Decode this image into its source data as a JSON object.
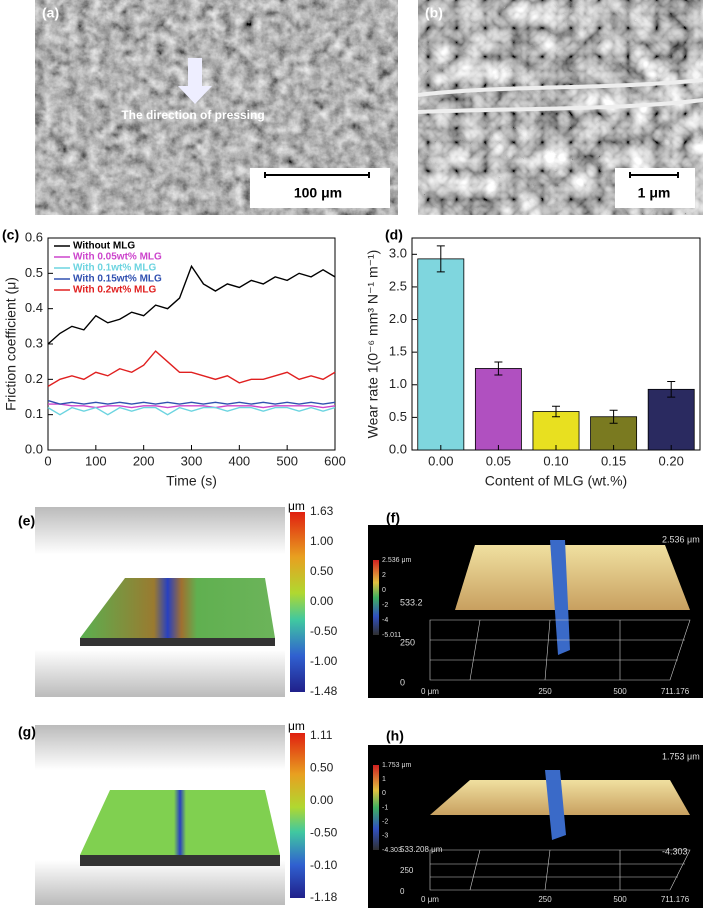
{
  "panels": {
    "a": {
      "label": "(a)",
      "annotation": "The direction of pressing",
      "scale_bar": "100 μm"
    },
    "b": {
      "label": "(b)",
      "scale_bar": "1 μm"
    },
    "e": {
      "label": "(e)",
      "unit": "μm",
      "colorbar": [
        "1.63",
        "1.00",
        "0.50",
        "0.00",
        "-0.50",
        "-1.00",
        "-1.48"
      ]
    },
    "f": {
      "label": "(f)",
      "max_label": "2.536 μm",
      "colorbar": [
        "2.536 μm",
        "2",
        "0",
        "-2",
        "-4",
        "-5.011"
      ],
      "y_labels": [
        "533.2",
        "250",
        "0"
      ],
      "x_labels": [
        "0 μm",
        "250",
        "500",
        "711.176"
      ]
    },
    "g": {
      "label": "(g)",
      "unit": "μm",
      "colorbar": [
        "1.11",
        "0.50",
        "0.00",
        "-0.50",
        "-0.10",
        "-1.18"
      ]
    },
    "h": {
      "label": "(h)",
      "max_label": "1.753 μm",
      "colorbar": [
        "1.753 μm",
        "1",
        "0",
        "-1",
        "-2",
        "-3",
        "-4.303"
      ],
      "y_labels": [
        "533.208 μm",
        "250",
        "0"
      ],
      "min_label": "-4.303",
      "x_labels": [
        "0 μm",
        "250",
        "500",
        "711.176"
      ]
    }
  },
  "chart_data": [
    {
      "type": "line",
      "panel_label": "(c)",
      "xlabel": "Time (s)",
      "ylabel": "Friction coefficient (μ)",
      "x": [
        0,
        25,
        50,
        75,
        100,
        125,
        150,
        175,
        200,
        225,
        250,
        275,
        300,
        325,
        350,
        375,
        400,
        425,
        450,
        475,
        500,
        525,
        550,
        575,
        600
      ],
      "xlim": [
        0,
        600
      ],
      "xticks": [
        0,
        100,
        200,
        300,
        400,
        500,
        600
      ],
      "ylim": [
        0,
        0.6
      ],
      "yticks": [
        {
          "value": 0,
          "label": "0.0"
        },
        0.1,
        0.2,
        0.3,
        0.4,
        0.5,
        0.6
      ],
      "series": [
        {
          "name": "Without MLG",
          "color": "#000000",
          "values": [
            0.3,
            0.33,
            0.35,
            0.34,
            0.38,
            0.36,
            0.37,
            0.39,
            0.38,
            0.41,
            0.4,
            0.43,
            0.52,
            0.47,
            0.45,
            0.47,
            0.46,
            0.48,
            0.47,
            0.49,
            0.48,
            0.5,
            0.49,
            0.51,
            0.49
          ]
        },
        {
          "name": "With 0.05wt% MLG",
          "color": "#cc44cc",
          "values": [
            0.13,
            0.13,
            0.125,
            0.125,
            0.12,
            0.125,
            0.125,
            0.12,
            0.125,
            0.125,
            0.12,
            0.125,
            0.125,
            0.125,
            0.12,
            0.125,
            0.125,
            0.125,
            0.12,
            0.125,
            0.125,
            0.125,
            0.125,
            0.12,
            0.125
          ]
        },
        {
          "name": "With 0.1wt% MLG",
          "color": "#6cd4e0",
          "values": [
            0.12,
            0.1,
            0.12,
            0.11,
            0.12,
            0.1,
            0.12,
            0.11,
            0.12,
            0.12,
            0.1,
            0.12,
            0.11,
            0.12,
            0.12,
            0.11,
            0.12,
            0.12,
            0.11,
            0.12,
            0.12,
            0.11,
            0.12,
            0.11,
            0.12
          ]
        },
        {
          "name": "With 0.15wt% MLG",
          "color": "#3050b0",
          "values": [
            0.14,
            0.13,
            0.135,
            0.13,
            0.135,
            0.13,
            0.135,
            0.13,
            0.135,
            0.13,
            0.135,
            0.13,
            0.135,
            0.13,
            0.135,
            0.13,
            0.135,
            0.13,
            0.135,
            0.13,
            0.135,
            0.13,
            0.135,
            0.13,
            0.135
          ]
        },
        {
          "name": "With 0.2wt% MLG",
          "color": "#e02020",
          "values": [
            0.18,
            0.2,
            0.21,
            0.2,
            0.22,
            0.21,
            0.23,
            0.22,
            0.24,
            0.28,
            0.25,
            0.22,
            0.22,
            0.21,
            0.2,
            0.21,
            0.19,
            0.2,
            0.2,
            0.21,
            0.22,
            0.2,
            0.21,
            0.2,
            0.22
          ]
        }
      ]
    },
    {
      "type": "bar",
      "panel_label": "(d)",
      "xlabel": "Content of MLG (wt.%)",
      "ylabel": "Wear rate 1(0⁻⁶ mm³ N⁻¹ m⁻¹)",
      "categories": [
        "0.00",
        "0.05",
        "0.10",
        "0.15",
        "0.20"
      ],
      "values": [
        2.93,
        1.25,
        0.59,
        0.51,
        0.93
      ],
      "errors": [
        0.2,
        0.1,
        0.08,
        0.1,
        0.12
      ],
      "colors": [
        "#7fd6de",
        "#b050c0",
        "#e8e020",
        "#7a7a20",
        "#2a2a60"
      ],
      "ylim": [
        0,
        3.25
      ],
      "yticks": [
        {
          "value": 0,
          "label": "0.0"
        },
        0.5,
        {
          "value": 1,
          "label": "1.0"
        },
        1.5,
        {
          "value": 2,
          "label": "2.0"
        },
        2.5,
        {
          "value": 3,
          "label": "3.0"
        }
      ]
    }
  ]
}
